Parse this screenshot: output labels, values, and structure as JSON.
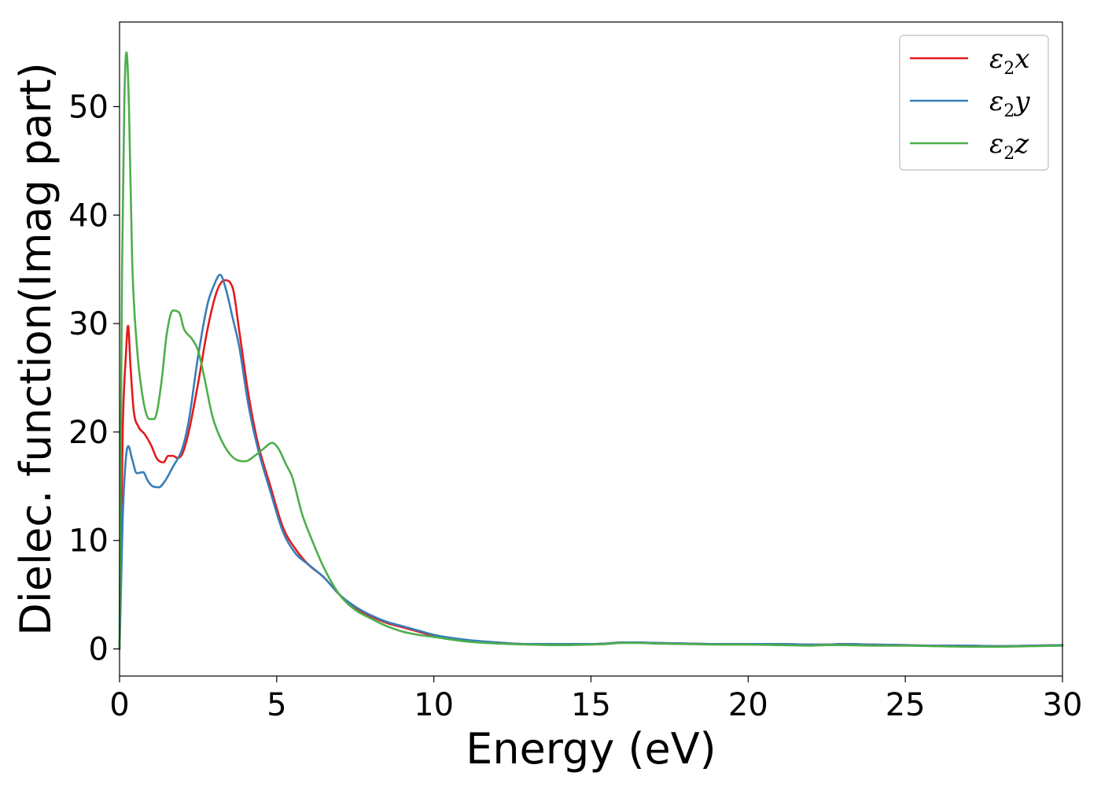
{
  "chart_data": {
    "type": "line",
    "xlabel": "Energy (eV)",
    "ylabel": "Dielec. function(Imag part)",
    "xlim": [
      0,
      30
    ],
    "ylim": [
      -2.5,
      57.8
    ],
    "xticks": [
      0,
      5,
      10,
      15,
      20,
      25,
      30
    ],
    "xtick_labels": [
      "0",
      "5",
      "10",
      "15",
      "20",
      "25",
      "30"
    ],
    "yticks": [
      0,
      10,
      20,
      30,
      40,
      50
    ],
    "ytick_labels": [
      "0",
      "10",
      "20",
      "30",
      "40",
      "50"
    ],
    "grid": false,
    "legend_position": "top-right",
    "series": [
      {
        "name": "ε2x",
        "label_main": "ε",
        "label_sub": "2",
        "label_tail": "x",
        "color": "#e41a1c",
        "x": [
          0,
          0.05,
          0.1,
          0.2,
          0.27,
          0.35,
          0.45,
          0.6,
          0.8,
          1.0,
          1.2,
          1.4,
          1.55,
          1.7,
          1.85,
          2.0,
          2.2,
          2.5,
          2.8,
          3.1,
          3.35,
          3.6,
          3.8,
          4.1,
          4.4,
          4.8,
          5.2,
          5.6,
          6.0,
          6.5,
          7.0,
          7.5,
          8.0,
          8.5,
          9.0,
          9.5,
          10,
          11,
          12,
          13,
          14,
          15,
          15.5,
          16,
          16.5,
          17,
          18,
          19,
          20,
          21,
          22,
          22.5,
          23,
          24,
          25,
          26,
          27,
          28,
          29,
          30
        ],
        "y": [
          0,
          10,
          20,
          27,
          29.8,
          26,
          22,
          20.5,
          19.8,
          18.8,
          17.5,
          17.2,
          17.8,
          17.8,
          17.6,
          18,
          20,
          24.5,
          29.5,
          33,
          34,
          33.3,
          29.5,
          23.5,
          19,
          15,
          11.2,
          9.2,
          7.8,
          6.6,
          5,
          3.8,
          3,
          2.4,
          2.0,
          1.6,
          1.2,
          0.8,
          0.6,
          0.45,
          0.45,
          0.45,
          0.5,
          0.6,
          0.6,
          0.55,
          0.5,
          0.45,
          0.45,
          0.45,
          0.4,
          0.4,
          0.45,
          0.4,
          0.35,
          0.3,
          0.3,
          0.25,
          0.3,
          0.35
        ]
      },
      {
        "name": "ε2y",
        "label_main": "ε",
        "label_sub": "2",
        "label_tail": "y",
        "color": "#377eb8",
        "x": [
          0,
          0.05,
          0.1,
          0.2,
          0.28,
          0.4,
          0.55,
          0.75,
          0.9,
          1.05,
          1.25,
          1.45,
          1.7,
          2.0,
          2.2,
          2.5,
          2.8,
          3.0,
          3.2,
          3.4,
          3.6,
          3.8,
          4.1,
          4.4,
          4.8,
          5.2,
          5.6,
          6.0,
          6.5,
          7.0,
          7.5,
          8.0,
          8.5,
          9.0,
          9.5,
          10,
          11,
          12,
          13,
          14,
          15,
          15.5,
          16,
          16.5,
          17,
          18,
          19,
          20,
          21,
          22,
          22.5,
          23,
          24,
          25,
          26,
          27,
          28,
          29,
          30
        ],
        "y": [
          0,
          6,
          12,
          17.5,
          18.7,
          17.5,
          16.2,
          16.3,
          15.5,
          15,
          14.9,
          15.5,
          16.8,
          18.5,
          21,
          27,
          31.8,
          33.5,
          34.5,
          33,
          30.5,
          28,
          22.5,
          18.5,
          14.5,
          10.8,
          8.8,
          7.8,
          6.6,
          5,
          3.9,
          3.1,
          2.5,
          2.1,
          1.7,
          1.3,
          0.85,
          0.6,
          0.45,
          0.45,
          0.45,
          0.5,
          0.6,
          0.6,
          0.55,
          0.5,
          0.45,
          0.45,
          0.45,
          0.4,
          0.4,
          0.45,
          0.4,
          0.35,
          0.3,
          0.3,
          0.25,
          0.3,
          0.35
        ]
      },
      {
        "name": "ε2z",
        "label_main": "ε",
        "label_sub": "2",
        "label_tail": "z",
        "color": "#4daf4a",
        "x": [
          0,
          0.03,
          0.08,
          0.15,
          0.22,
          0.3,
          0.4,
          0.55,
          0.75,
          0.95,
          1.1,
          1.2,
          1.35,
          1.5,
          1.7,
          1.9,
          2.05,
          2.3,
          2.5,
          2.7,
          2.95,
          3.2,
          3.5,
          3.75,
          4.0,
          4.3,
          4.6,
          4.85,
          5.05,
          5.3,
          5.5,
          5.8,
          6.1,
          6.5,
          7.0,
          7.5,
          8.0,
          8.5,
          9.0,
          9.5,
          10,
          11,
          12,
          13,
          14,
          15,
          15.5,
          16,
          16.5,
          17,
          18,
          19,
          20,
          21,
          22,
          22.5,
          23,
          24,
          25,
          26,
          27,
          28,
          29,
          30
        ],
        "y": [
          0,
          15,
          35,
          50,
          55,
          50,
          36,
          28,
          23,
          21.2,
          21.2,
          22,
          25,
          29,
          31.2,
          31,
          29.5,
          28.6,
          27.5,
          25,
          21.5,
          19.5,
          18,
          17.4,
          17.3,
          17.8,
          18.5,
          19,
          18.5,
          17,
          15.8,
          12.5,
          10.2,
          7.5,
          5,
          3.6,
          2.8,
          2.1,
          1.6,
          1.3,
          1.1,
          0.7,
          0.5,
          0.4,
          0.35,
          0.4,
          0.45,
          0.55,
          0.55,
          0.5,
          0.45,
          0.4,
          0.4,
          0.35,
          0.3,
          0.35,
          0.35,
          0.3,
          0.3,
          0.25,
          0.2,
          0.2,
          0.25,
          0.3
        ]
      }
    ]
  }
}
